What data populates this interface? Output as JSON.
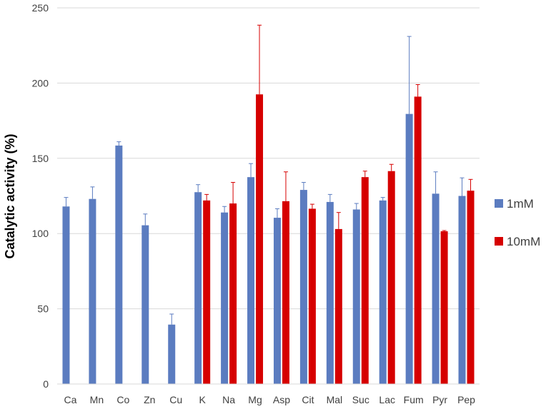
{
  "chart_data": {
    "type": "bar",
    "ylabel": "Catalytic activity (%)",
    "xlabel": "",
    "ylim": [
      0,
      250
    ],
    "yticks": [
      0,
      50,
      100,
      150,
      200,
      250
    ],
    "grid": "horizontal",
    "legend_position": "right",
    "categories": [
      "Ca",
      "Mn",
      "Co",
      "Zn",
      "Cu",
      "K",
      "Na",
      "Mg",
      "Asp",
      "Cit",
      "Mal",
      "Suc",
      "Lac",
      "Fum",
      "Pyr",
      "Pep"
    ],
    "series": [
      {
        "name": "1mM",
        "color": "#5B7CC0",
        "values": [
          118,
          123,
          158.5,
          105.5,
          39.5,
          127.5,
          114,
          137.5,
          110.5,
          129,
          121,
          116,
          122,
          179.5,
          126.5,
          125
        ],
        "errors": [
          6,
          8,
          2.5,
          7.5,
          7,
          5,
          4,
          9,
          6,
          5,
          5,
          4,
          2,
          51.5,
          14.5,
          12
        ]
      },
      {
        "name": "10mM",
        "color": "#D60000",
        "values": [
          null,
          null,
          null,
          null,
          null,
          122,
          120,
          192.5,
          121.5,
          116.5,
          103,
          137.5,
          141.5,
          191,
          101.5,
          128.5
        ],
        "errors": [
          null,
          null,
          null,
          null,
          null,
          4,
          14,
          46,
          19.5,
          3,
          11,
          4,
          4.5,
          8,
          0.5,
          7.5
        ]
      }
    ]
  }
}
